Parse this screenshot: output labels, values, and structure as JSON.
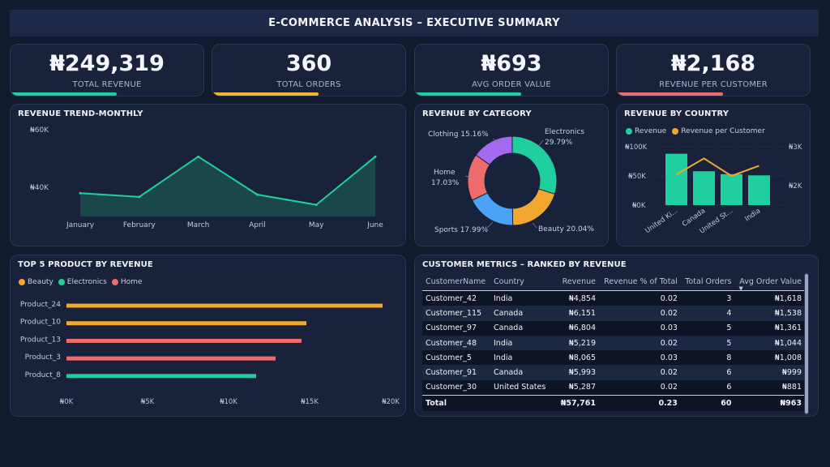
{
  "dashboard": {
    "title": "E-COMMERCE ANALYSIS – EXECUTIVE SUMMARY"
  },
  "kpis": [
    {
      "value": "₦249,319",
      "label": "TOTAL REVENUE",
      "bar_color": "#1fcf9e",
      "bar_fill": 0.55
    },
    {
      "value": "360",
      "label": "TOTAL ORDERS",
      "bar_color": "#f2b233",
      "bar_fill": 0.55
    },
    {
      "value": "₦693",
      "label": "AVG ORDER VALUE",
      "bar_color": "#1fcf9e",
      "bar_fill": 0.55
    },
    {
      "value": "₦2,168",
      "label": "REVENUE PER CUSTOMER",
      "bar_color": "#f06b6b",
      "bar_fill": 0.55
    }
  ],
  "revenue_trend": {
    "title": "REVENUE TREND-MONTHLY",
    "y_ticks": [
      "₦60K",
      "₦40K"
    ]
  },
  "revenue_by_category": {
    "title": "REVENUE BY CATEGORY"
  },
  "revenue_by_country": {
    "title": "REVENUE BY COUNTRY",
    "legend": [
      "Revenue",
      "Revenue per Customer"
    ],
    "y_left_ticks": [
      "₦100K",
      "₦50K",
      "₦0K"
    ],
    "y_right_ticks": [
      "₦3K",
      "₦2K"
    ]
  },
  "top5": {
    "title": "TOP 5 PRODUCT BY REVENUE",
    "legend": [
      "Beauty",
      "Electronics",
      "Home"
    ],
    "x_ticks": [
      "₦0K",
      "₦5K",
      "₦10K",
      "₦15K",
      "₦20K"
    ]
  },
  "customer_metrics": {
    "title": "CUSTOMER METRICS – RANKED BY REVENUE",
    "columns": [
      "CustomerName",
      "Country",
      "Revenue",
      "Revenue % of Total",
      "Total Orders",
      "Avg Order Value"
    ],
    "rows": [
      [
        "Customer_42",
        "India",
        "₦4,854",
        "0.02",
        "3",
        "₦1,618"
      ],
      [
        "Customer_115",
        "Canada",
        "₦6,151",
        "0.02",
        "4",
        "₦1,538"
      ],
      [
        "Customer_97",
        "Canada",
        "₦6,804",
        "0.03",
        "5",
        "₦1,361"
      ],
      [
        "Customer_48",
        "India",
        "₦5,219",
        "0.02",
        "5",
        "₦1,044"
      ],
      [
        "Customer_5",
        "India",
        "₦8,065",
        "0.03",
        "8",
        "₦1,008"
      ],
      [
        "Customer_91",
        "Canada",
        "₦5,993",
        "0.02",
        "6",
        "₦999"
      ],
      [
        "Customer_30",
        "United States",
        "₦5,287",
        "0.02",
        "6",
        "₦881"
      ]
    ],
    "total": [
      "Total",
      "",
      "₦57,761",
      "0.23",
      "60",
      "₦963"
    ]
  },
  "chart_data": [
    {
      "type": "area",
      "title": "REVENUE TREND-MONTHLY",
      "categories": [
        "January",
        "February",
        "March",
        "April",
        "May",
        "June"
      ],
      "values": [
        38000,
        36700,
        50500,
        37500,
        34000,
        50500
      ],
      "ylim": [
        30000,
        60000
      ],
      "color": "#1fcf9e"
    },
    {
      "type": "pie",
      "title": "REVENUE BY CATEGORY",
      "labels": [
        "Electronics",
        "Beauty",
        "Sports",
        "Home",
        "Clothing"
      ],
      "values": [
        29.79,
        20.04,
        17.99,
        17.03,
        15.16
      ],
      "display": [
        "Electronics\n29.79%",
        "Beauty 20.04%",
        "Sports 17.99%",
        "Home\n17.03%",
        "Clothing 15.16%"
      ],
      "colors": [
        "#1fcf9e",
        "#f2a72e",
        "#4aa3f5",
        "#f06b6b",
        "#a569f0"
      ]
    },
    {
      "type": "bar",
      "title": "REVENUE BY COUNTRY",
      "categories": [
        "United Ki...",
        "Canada",
        "United St...",
        "India"
      ],
      "series": [
        {
          "name": "Revenue",
          "values": [
            88000,
            58000,
            53000,
            51000
          ],
          "color": "#1fcf9e"
        },
        {
          "name": "Revenue per Customer",
          "values": [
            2050,
            2600,
            2000,
            2350
          ],
          "color": "#f2a72e"
        }
      ],
      "ylim": [
        0,
        100000
      ],
      "ylim_right": [
        1000,
        3000
      ]
    },
    {
      "type": "bar",
      "title": "TOP 5 PRODUCT BY REVENUE",
      "orientation": "horizontal",
      "categories": [
        "Product_24",
        "Product_10",
        "Product_13",
        "Product_3",
        "Product_8"
      ],
      "values": [
        19500,
        14800,
        14500,
        12900,
        11700
      ],
      "groups": [
        "Beauty",
        "Beauty",
        "Home",
        "Home",
        "Electronics"
      ],
      "colors": {
        "Beauty": "#f2a72e",
        "Electronics": "#1fcf9e",
        "Home": "#f06b6b"
      },
      "xlim": [
        0,
        20000
      ]
    }
  ]
}
